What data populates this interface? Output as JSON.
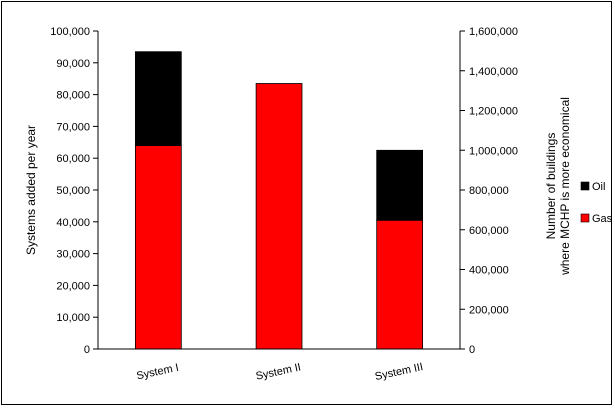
{
  "chart_data": {
    "type": "bar",
    "stacked": true,
    "categories": [
      "System I",
      "System II",
      "System III"
    ],
    "series": [
      {
        "name": "Gas",
        "color": "#ff0000",
        "values": [
          64000,
          83500,
          40500
        ]
      },
      {
        "name": "Oil",
        "color": "#000000",
        "values": [
          29500,
          0,
          22000
        ]
      }
    ],
    "title": "",
    "ylabel": "Systems added per year",
    "y2label_lines": [
      "Number of buildings",
      "where MCHP is more economical"
    ],
    "ylim": [
      0,
      100000
    ],
    "yticks": [
      0,
      10000,
      20000,
      30000,
      40000,
      50000,
      60000,
      70000,
      80000,
      90000,
      100000
    ],
    "ytick_labels": [
      "0",
      "10,000",
      "20,000",
      "30,000",
      "40,000",
      "50,000",
      "60,000",
      "70,000",
      "80,000",
      "90,000",
      "100,000"
    ],
    "y2lim": [
      0,
      1600000
    ],
    "y2ticks": [
      0,
      200000,
      400000,
      600000,
      800000,
      1000000,
      1200000,
      1400000,
      1600000
    ],
    "y2tick_labels": [
      "0",
      "200,000",
      "400,000",
      "600,000",
      "800,000",
      "1,000,000",
      "1,200,000",
      "1,400,000",
      "1,600,000"
    ],
    "grid": false,
    "legend_position": "right",
    "legend_order": [
      "Oil",
      "Gas"
    ]
  }
}
